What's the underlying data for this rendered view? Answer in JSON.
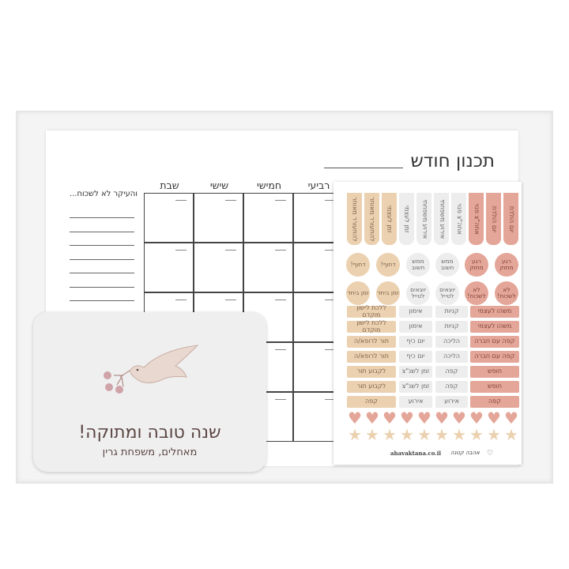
{
  "planner": {
    "title": "תכנון חודש",
    "days": [
      "רביעי",
      "חמישי",
      "שישי",
      "שבת"
    ],
    "notes_title": "והעיקר לא לשכוח..."
  },
  "stickers": {
    "colors": {
      "tan": "#ebd1b0",
      "gray": "#ededed",
      "pink": "#e4a698"
    },
    "tabs": [
      {
        "t": "להתעורר מאוחר",
        "c": "tan"
      },
      {
        "t": "להתעורר מאוחר",
        "c": "tan"
      },
      {
        "t": "זמן לעצמי",
        "c": "tan"
      },
      {
        "t": "זמן לעצמי",
        "c": "gray"
      },
      {
        "t": "אירוע משפחתי",
        "c": "gray"
      },
      {
        "t": "אירוע משפחתי",
        "c": "gray"
      },
      {
        "t": "אחה\"צ פנוי",
        "c": "gray"
      },
      {
        "t": "אחה\"צ פנוי",
        "c": "pink"
      },
      {
        "t": "יום הולדת",
        "c": "pink"
      },
      {
        "t": "יום הולדת",
        "c": "pink"
      }
    ],
    "circles": [
      [
        {
          "t": "דחוף!",
          "c": "tan"
        },
        {
          "t": "דחוף!",
          "c": "tan"
        },
        {
          "t": "ממש חשוב",
          "c": "gray"
        },
        {
          "t": "ממש חשוב",
          "c": "gray"
        },
        {
          "t": "רגע מתוק",
          "c": "pink"
        },
        {
          "t": "רגע מתוק",
          "c": "pink"
        }
      ],
      [
        {
          "t": "זמן ביחד",
          "c": "tan"
        },
        {
          "t": "זמן ביחד",
          "c": "tan"
        },
        {
          "t": "יוצאים לטייל",
          "c": "gray"
        },
        {
          "t": "יוצאים לטייל",
          "c": "gray"
        },
        {
          "t": "לא לשכוח!",
          "c": "pink"
        },
        {
          "t": "לא לשכוח!",
          "c": "pink"
        }
      ]
    ],
    "rows": [
      [
        "ללכת לישון מוקדם",
        "אימון",
        "קניות",
        "משהו לעצמי"
      ],
      [
        "ללכת לישון מוקדם",
        "אימון",
        "קניות",
        "משהו לעצמי"
      ],
      [
        "תור לרופא/ה",
        "יום כיף",
        "הליכה",
        "קפה עם חברה"
      ],
      [
        "תור לרופא/ה",
        "יום כיף",
        "הליכה",
        "קפה עם חברה"
      ],
      [
        "לקבוע תור",
        "זמן לשנ\"צ",
        "קפה",
        "חופש"
      ],
      [
        "לקבוע תור",
        "זמן לשנ\"צ",
        "קפה",
        "חופש"
      ],
      [
        "קפה",
        "אירוע",
        "אירוע",
        "קפה"
      ]
    ],
    "footer_url": "ahavaktana.co.il",
    "footer_brand": "אהבה קטנה"
  },
  "card": {
    "title": "שנה טובה ומתוקה!",
    "subtitle": "מאחלים, משפחת גרין"
  }
}
